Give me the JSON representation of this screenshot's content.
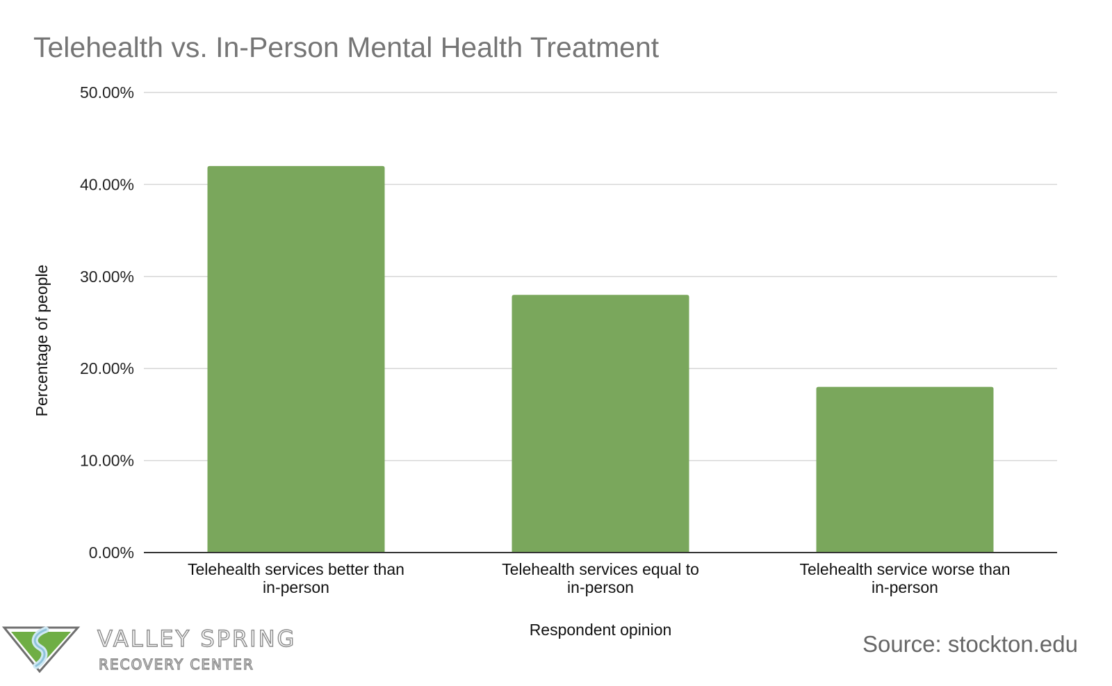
{
  "chart_data": {
    "type": "bar",
    "title": "Telehealth vs. In-Person Mental Health Treatment",
    "xlabel": "Respondent opinion",
    "ylabel": "Percentage of people",
    "categories": [
      [
        "Telehealth services better than",
        "in-person"
      ],
      [
        "Telehealth services equal to",
        "in-person"
      ],
      [
        "Telehealth service worse than",
        "in-person"
      ]
    ],
    "values": [
      42,
      28,
      18
    ],
    "ylim": [
      0,
      50
    ],
    "yticks": [
      {
        "value": 0,
        "label": "0.00%"
      },
      {
        "value": 10,
        "label": "10.00%"
      },
      {
        "value": 20,
        "label": "20.00%"
      },
      {
        "value": 30,
        "label": "30.00%"
      },
      {
        "value": 40,
        "label": "40.00%"
      },
      {
        "value": 50,
        "label": "50.00%"
      }
    ],
    "grid": true,
    "bar_color": "#7aa75c",
    "grid_color": "#d6d6d6",
    "axis_color": "#333333"
  },
  "source": "Source: stockton.edu",
  "logo": {
    "name": "VALLEY SPRING",
    "tagline": "RECOVERY CENTER",
    "icon": "valley-spring-logo-icon"
  }
}
